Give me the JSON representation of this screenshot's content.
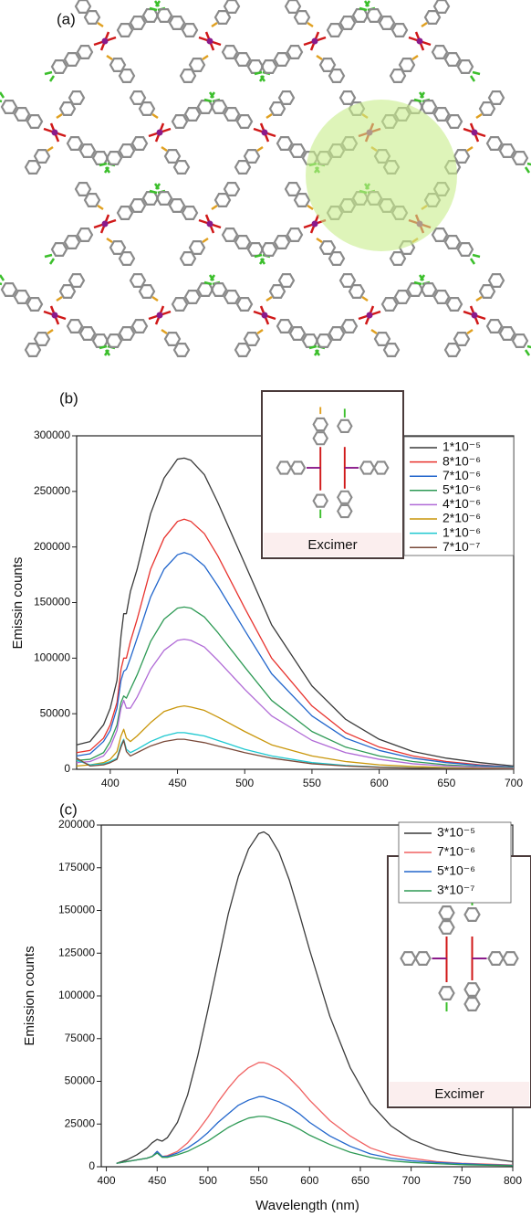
{
  "panel_a": {
    "panel_label": "(a)"
  },
  "chart_data": [
    {
      "type": "line",
      "panel_label": "(b)",
      "y_label": "Emissin counts",
      "inset_label": "Excimer",
      "xlim": [
        375,
        700
      ],
      "xticks": [
        400,
        450,
        500,
        550,
        600,
        650,
        700
      ],
      "ylim": [
        0,
        300000
      ],
      "yticks": [
        0,
        50000,
        100000,
        150000,
        200000,
        250000,
        300000
      ],
      "legend": "upper right",
      "x": [
        375,
        385,
        395,
        400,
        405,
        408,
        410,
        412,
        415,
        420,
        430,
        440,
        450,
        455,
        460,
        470,
        480,
        500,
        520,
        550,
        575,
        600,
        625,
        650,
        675,
        700
      ],
      "series": [
        {
          "name": "1*10⁻⁵",
          "color": "#3a3a3a",
          "values": [
            22000,
            25000,
            40000,
            55000,
            80000,
            120000,
            140000,
            140000,
            160000,
            180000,
            230000,
            262000,
            279000,
            280000,
            278000,
            265000,
            240000,
            185000,
            130000,
            75000,
            45000,
            27000,
            16000,
            10000,
            6000,
            3000
          ]
        },
        {
          "name": "8*10⁻⁶",
          "color": "#e8332e",
          "values": [
            15000,
            17000,
            28000,
            40000,
            60000,
            90000,
            100000,
            100000,
            115000,
            135000,
            180000,
            208000,
            223000,
            225000,
            223000,
            212000,
            192000,
            145000,
            100000,
            57000,
            33000,
            20000,
            12000,
            7000,
            4000,
            2000
          ]
        },
        {
          "name": "7*10⁻⁶",
          "color": "#2266cc",
          "values": [
            12000,
            14000,
            25000,
            35000,
            55000,
            80000,
            88000,
            90000,
            100000,
            118000,
            155000,
            180000,
            193000,
            195000,
            193000,
            183000,
            165000,
            125000,
            86000,
            48000,
            28000,
            17000,
            10000,
            6000,
            3500,
            2000
          ]
        },
        {
          "name": "5*10⁻⁶",
          "color": "#2e9a55",
          "values": [
            8000,
            9000,
            15000,
            25000,
            40000,
            60000,
            66000,
            64000,
            72000,
            85000,
            115000,
            135000,
            145000,
            146000,
            145000,
            137000,
            123000,
            92000,
            62000,
            34000,
            20000,
            12000,
            7000,
            4000,
            2500,
            1500
          ]
        },
        {
          "name": "4*10⁻⁶",
          "color": "#b06ad6",
          "values": [
            6000,
            7000,
            12000,
            20000,
            35000,
            55000,
            62000,
            55000,
            55000,
            65000,
            90000,
            107000,
            116000,
            117000,
            116000,
            110000,
            98000,
            72000,
            48000,
            26000,
            15000,
            9000,
            5000,
            3000,
            2000,
            1000
          ]
        },
        {
          "name": "2*10⁻⁶",
          "color": "#c9960a",
          "values": [
            3000,
            4000,
            6000,
            9000,
            16000,
            30000,
            36000,
            28000,
            25000,
            30000,
            42000,
            52000,
            56000,
            57000,
            56000,
            53000,
            47000,
            34000,
            22000,
            12000,
            7000,
            4000,
            2500,
            1500,
            1000,
            500
          ]
        },
        {
          "name": "1*10⁻⁶",
          "color": "#1ec8d0",
          "values": [
            8000,
            4000,
            5000,
            7000,
            10000,
            22000,
            27000,
            18000,
            15000,
            18000,
            25000,
            30000,
            33000,
            33000,
            32000,
            30000,
            26000,
            18000,
            12000,
            6000,
            3500,
            2000,
            1200,
            800,
            500,
            300
          ]
        },
        {
          "name": "7*10⁻⁷",
          "color": "#7a4a3a",
          "values": [
            10000,
            3000,
            4000,
            6000,
            9000,
            20000,
            26000,
            16000,
            12000,
            15000,
            21000,
            25000,
            27000,
            27000,
            26000,
            24000,
            21000,
            15000,
            10000,
            5000,
            3000,
            1800,
            1000,
            600,
            400,
            200
          ]
        }
      ]
    },
    {
      "type": "line",
      "panel_label": "(c)",
      "x_label": "Wavelength (nm)",
      "y_label": "Emission counts",
      "inset_label": "Excimer",
      "xlim": [
        395,
        800
      ],
      "xticks": [
        400,
        450,
        500,
        550,
        600,
        650,
        700,
        750,
        800
      ],
      "ylim": [
        0,
        200000
      ],
      "yticks": [
        0,
        25000,
        50000,
        75000,
        100000,
        125000,
        150000,
        175000,
        200000
      ],
      "legend": "upper right",
      "x": [
        410,
        420,
        430,
        440,
        445,
        450,
        455,
        460,
        470,
        480,
        490,
        500,
        510,
        520,
        530,
        540,
        550,
        555,
        560,
        570,
        580,
        590,
        600,
        620,
        640,
        660,
        680,
        700,
        725,
        750,
        775,
        800
      ],
      "series": [
        {
          "name": "3*10⁻⁵",
          "color": "#3a3a3a",
          "values": [
            2000,
            4000,
            7000,
            11000,
            14000,
            16000,
            15000,
            17000,
            26000,
            42000,
            65000,
            92000,
            120000,
            148000,
            170000,
            186000,
            195000,
            196000,
            194000,
            184000,
            168000,
            148000,
            127000,
            88000,
            58000,
            37000,
            24000,
            16000,
            10000,
            7000,
            5000,
            3000
          ]
        },
        {
          "name": "7*10⁻⁶",
          "color": "#f06060",
          "values": [
            2000,
            3000,
            4000,
            5000,
            6000,
            9000,
            6000,
            6500,
            9000,
            14000,
            21000,
            29000,
            38000,
            46000,
            53000,
            58000,
            61000,
            61000,
            60000,
            57000,
            52000,
            46000,
            39000,
            27000,
            18000,
            11000,
            7000,
            5000,
            3000,
            2000,
            1500,
            1000
          ]
        },
        {
          "name": "5*10⁻⁶",
          "color": "#2266cc",
          "values": [
            2000,
            3000,
            4000,
            5000,
            6000,
            9000,
            6000,
            6000,
            8000,
            11000,
            15000,
            20000,
            26000,
            31000,
            36000,
            39000,
            41000,
            41000,
            40000,
            38000,
            35000,
            31000,
            26000,
            18000,
            12000,
            7500,
            5000,
            3500,
            2500,
            1800,
            1200,
            800
          ]
        },
        {
          "name": "3*10⁻⁷",
          "color": "#2e9a55",
          "values": [
            2000,
            3000,
            4000,
            5000,
            6000,
            8000,
            5500,
            5500,
            7000,
            9000,
            12000,
            15000,
            19000,
            23000,
            26000,
            28500,
            29500,
            29500,
            29000,
            27000,
            25000,
            22000,
            18500,
            13000,
            8500,
            5500,
            3500,
            2500,
            1800,
            1200,
            900,
            600
          ]
        }
      ]
    }
  ]
}
